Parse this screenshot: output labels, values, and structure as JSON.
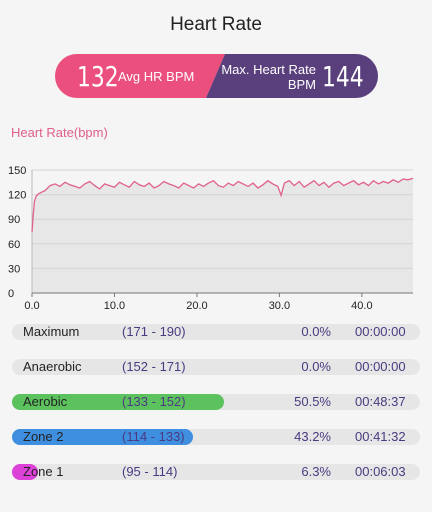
{
  "header": {
    "title": "Heart Rate"
  },
  "summary": {
    "avg_value": "132",
    "avg_label": "Avg HR BPM",
    "max_label_line1": "Max. Heart Rate",
    "max_label_line2": "BPM",
    "max_value": "144",
    "colors": {
      "avg": "#ea4f7d",
      "max": "#5a3f7d"
    }
  },
  "chart_title": "Heart Rate(bpm)",
  "chart_data": {
    "type": "line",
    "title": "Heart Rate(bpm)",
    "xlabel": "",
    "ylabel": "",
    "xlim": [
      0,
      46.2
    ],
    "ylim": [
      0,
      150
    ],
    "xticks": [
      "0.0",
      "10.0",
      "20.0",
      "30.0",
      "40.0"
    ],
    "yticks": [
      "0",
      "30",
      "60",
      "90",
      "120",
      "150"
    ],
    "grid": true,
    "line_color": "#e0608a",
    "area_color": "#e7e7e7",
    "series": [
      {
        "x": [
          0,
          0.15,
          0.3,
          0.5,
          0.8,
          1.2,
          1.6,
          2.2,
          2.8,
          3.4,
          4.0,
          4.6,
          5.2,
          5.8,
          6.4,
          7.0,
          7.6,
          8.2,
          8.8,
          9.4,
          10.0,
          10.6,
          11.2,
          11.8,
          12.4,
          13.0,
          13.6,
          14.2,
          14.8,
          15.4,
          16.0,
          16.6,
          17.2,
          17.8,
          18.4,
          19.0,
          19.6,
          20.2,
          20.8,
          21.4,
          22.0,
          22.6,
          23.2,
          23.8,
          24.4,
          25.0,
          25.6,
          26.2,
          26.8,
          27.4,
          28.0,
          28.6,
          29.2,
          29.8,
          30.2,
          30.6,
          31.2,
          31.8,
          32.4,
          33.0,
          33.6,
          34.2,
          34.8,
          35.4,
          36.0,
          36.6,
          37.2,
          37.8,
          38.4,
          39.0,
          39.6,
          40.2,
          40.8,
          41.4,
          42.0,
          42.6,
          43.2,
          43.8,
          44.4,
          45.0,
          45.6,
          46.2
        ],
        "y": [
          74,
          95,
          112,
          118,
          121,
          123,
          125,
          131,
          133,
          130,
          135,
          132,
          130,
          128,
          133,
          136,
          131,
          127,
          133,
          131,
          129,
          135,
          132,
          129,
          136,
          132,
          130,
          134,
          128,
          131,
          136,
          133,
          131,
          128,
          134,
          131,
          128,
          133,
          130,
          134,
          137,
          131,
          129,
          134,
          131,
          136,
          133,
          130,
          134,
          128,
          132,
          137,
          133,
          130,
          119,
          134,
          137,
          131,
          136,
          129,
          133,
          137,
          131,
          135,
          129,
          134,
          136,
          131,
          134,
          137,
          132,
          135,
          131,
          137,
          133,
          136,
          134,
          138,
          135,
          139,
          138,
          140
        ]
      }
    ]
  },
  "zones": [
    {
      "name": "Maximum",
      "range": "(171 - 190)",
      "percent": "0.0%",
      "fill_fraction": 0.0,
      "time": "00:00:00",
      "color": "#e6e6e6"
    },
    {
      "name": "Anaerobic",
      "range": "(152 - 171)",
      "percent": "0.0%",
      "fill_fraction": 0.0,
      "time": "00:00:00",
      "color": "#e6e6e6"
    },
    {
      "name": "Aerobic",
      "range": "(133 - 152)",
      "percent": "50.5%",
      "fill_fraction": 0.505,
      "time": "00:48:37",
      "color": "#5cc25e"
    },
    {
      "name": "Zone 2",
      "range": "(114 - 133)",
      "percent": "43.2%",
      "fill_fraction": 0.432,
      "time": "00:41:32",
      "color": "#3f8fe0"
    },
    {
      "name": "Zone 1",
      "range": "(95 - 114)",
      "percent": "6.3%",
      "fill_fraction": 0.063,
      "time": "00:06:03",
      "color": "#dd42d8"
    }
  ]
}
